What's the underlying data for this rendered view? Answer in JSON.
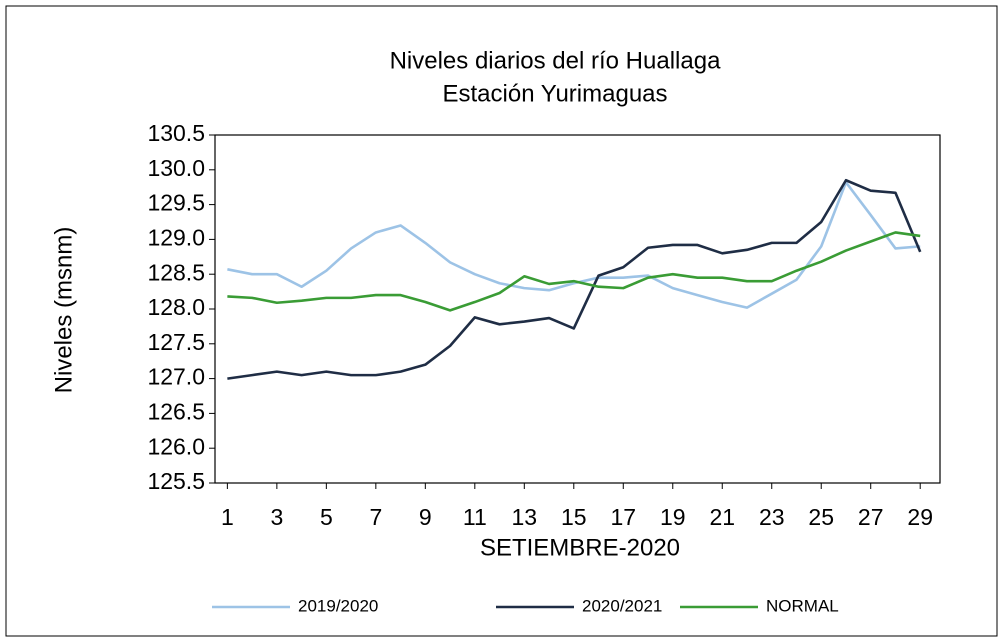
{
  "chart_data": {
    "type": "line",
    "title": [
      "Niveles  diarios del río Huallaga",
      "Estación Yurimaguas"
    ],
    "xlabel": "SETIEMBRE-2020",
    "ylabel": "Niveles (msnm)",
    "x": [
      1,
      2,
      3,
      4,
      5,
      6,
      7,
      8,
      9,
      10,
      11,
      12,
      13,
      14,
      15,
      16,
      17,
      18,
      19,
      20,
      21,
      22,
      23,
      24,
      25,
      26,
      27,
      28,
      29
    ],
    "xlim": [
      0.5,
      29.8
    ],
    "xticks": [
      1,
      3,
      5,
      7,
      9,
      11,
      13,
      15,
      17,
      19,
      21,
      23,
      25,
      27,
      29
    ],
    "ylim": [
      125.5,
      130.5
    ],
    "yticks": [
      125.5,
      {
        "value": 126,
        "label": "126.0"
      },
      126.5,
      {
        "value": 127,
        "label": "127.0"
      },
      127.5,
      {
        "value": 128,
        "label": "128.0"
      },
      128.5,
      {
        "value": 129,
        "label": "129.0"
      },
      129.5,
      {
        "value": 130,
        "label": "130.0"
      },
      130.5
    ],
    "legend": "bottom",
    "series": [
      {
        "name": "2019/2020",
        "color": "#9dc3e6",
        "values": [
          128.57,
          128.5,
          128.5,
          128.32,
          128.55,
          128.87,
          129.1,
          129.2,
          128.95,
          128.67,
          128.5,
          128.37,
          128.3,
          128.27,
          128.37,
          128.45,
          128.45,
          128.48,
          128.3,
          128.2,
          128.1,
          128.02,
          128.22,
          128.42,
          128.9,
          129.82,
          129.35,
          128.87,
          128.9
        ]
      },
      {
        "name": "2020/2021",
        "color": "#1f2d45",
        "values": [
          127.0,
          127.05,
          127.1,
          127.05,
          127.1,
          127.05,
          127.05,
          127.1,
          127.2,
          127.47,
          127.88,
          127.78,
          127.82,
          127.87,
          127.72,
          128.48,
          128.6,
          128.88,
          128.92,
          128.92,
          128.8,
          128.85,
          128.95,
          128.95,
          129.25,
          129.85,
          129.7,
          129.67,
          128.82
        ]
      },
      {
        "name": "NORMAL",
        "color": "#3a9c35",
        "values": [
          128.18,
          128.16,
          128.09,
          128.12,
          128.16,
          128.16,
          128.2,
          128.2,
          128.1,
          127.98,
          128.1,
          128.23,
          128.47,
          128.36,
          128.4,
          128.32,
          128.3,
          128.45,
          128.5,
          128.45,
          128.45,
          128.4,
          128.4,
          128.55,
          128.68,
          128.84,
          128.97,
          129.1,
          129.05
        ]
      }
    ]
  }
}
